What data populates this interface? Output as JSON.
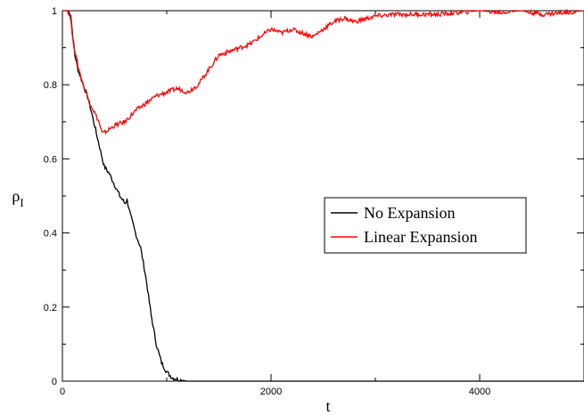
{
  "chart_data": {
    "type": "line",
    "title": "",
    "xlabel": "t",
    "ylabel": "ρ",
    "ylabel_subscript": "I",
    "xlim": [
      0,
      5000
    ],
    "ylim": [
      0,
      1
    ],
    "x_ticks": [
      0,
      2000,
      4000
    ],
    "x_tick_labels": [
      "0",
      "2000",
      "4000"
    ],
    "y_ticks": [
      0,
      0.2,
      0.4,
      0.6,
      0.8,
      1
    ],
    "y_tick_labels": [
      "0",
      "0.2",
      "0.4",
      "0.6",
      "0.8",
      "1"
    ],
    "grid": false,
    "legend_position": "center-right",
    "series": [
      {
        "name": "No Expansion",
        "color": "#000000",
        "x": [
          0,
          50,
          80,
          100,
          120,
          150,
          200,
          250,
          300,
          350,
          400,
          450,
          500,
          550,
          600,
          620,
          650,
          700,
          750,
          800,
          850,
          900,
          950,
          1000,
          1050,
          1100,
          1150,
          1200,
          1250,
          1300,
          1400,
          2000,
          3000,
          4000,
          5000
        ],
        "y": [
          1.0,
          1.0,
          0.99,
          0.93,
          0.88,
          0.84,
          0.8,
          0.76,
          0.7,
          0.64,
          0.58,
          0.56,
          0.53,
          0.5,
          0.48,
          0.49,
          0.45,
          0.4,
          0.36,
          0.28,
          0.18,
          0.1,
          0.05,
          0.025,
          0.01,
          0.005,
          0.002,
          0.0,
          0.0,
          0.0,
          0.0,
          0.0,
          0.0,
          0.0,
          0.0
        ]
      },
      {
        "name": "Linear Expansion",
        "color": "#ff0000",
        "x": [
          0,
          50,
          80,
          100,
          150,
          200,
          250,
          300,
          350,
          380,
          400,
          500,
          600,
          700,
          800,
          900,
          1000,
          1100,
          1200,
          1300,
          1400,
          1500,
          1600,
          1700,
          1800,
          1900,
          2000,
          2100,
          2200,
          2300,
          2400,
          2500,
          2600,
          2700,
          2800,
          3000,
          3200,
          3400,
          3600,
          3800,
          4000,
          4200,
          4400,
          4600,
          4800,
          5000
        ],
        "y": [
          1.0,
          1.0,
          0.98,
          0.92,
          0.85,
          0.8,
          0.76,
          0.73,
          0.7,
          0.67,
          0.67,
          0.69,
          0.7,
          0.73,
          0.75,
          0.77,
          0.78,
          0.79,
          0.78,
          0.8,
          0.84,
          0.88,
          0.89,
          0.9,
          0.91,
          0.93,
          0.95,
          0.94,
          0.95,
          0.94,
          0.93,
          0.95,
          0.97,
          0.98,
          0.97,
          0.985,
          0.99,
          0.99,
          0.99,
          0.995,
          1.0,
          0.995,
          1.0,
          0.99,
          0.995,
          1.0
        ]
      }
    ]
  }
}
